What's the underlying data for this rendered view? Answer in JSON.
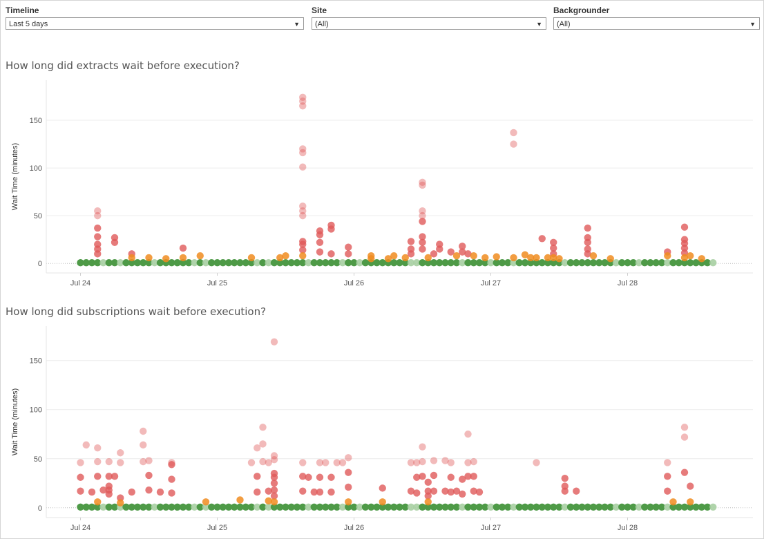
{
  "filters": [
    {
      "label": "Timeline",
      "value": "Last 5 days"
    },
    {
      "label": "Site",
      "value": "(All)"
    },
    {
      "label": "Backgrounder",
      "value": "(All)"
    }
  ],
  "colors": {
    "green": "#4e9a47",
    "orange": "#f08c20",
    "red": "#e05a5a",
    "light_red": "#f0a8a8",
    "light_orange": "#f7c894",
    "light_green": "#a7cfa2"
  },
  "chart_data": [
    {
      "type": "scatter",
      "title": "How long did extracts wait before execution?",
      "ylabel": "Wait Time (minutes)",
      "xlabel": "",
      "ylim": [
        -10,
        192
      ],
      "yticks": [
        0,
        50,
        100,
        150
      ],
      "xlim": [
        "Jul 23 18:00",
        "Jul 28 22:00"
      ],
      "xticks": [
        "Jul 24",
        "Jul 25",
        "Jul 26",
        "Jul 27",
        "Jul 28"
      ],
      "grid": true,
      "baseline_range": [
        "Jul 24 00:00",
        "Jul 28 15:00"
      ],
      "baseline_step_hours": 1,
      "baseline_value": 0,
      "points": [
        {
          "x": "Jul 24 03:00",
          "y": 55
        },
        {
          "x": "Jul 24 03:00",
          "y": 50
        },
        {
          "x": "Jul 24 03:00",
          "y": 37
        },
        {
          "x": "Jul 24 03:00",
          "y": 28
        },
        {
          "x": "Jul 24 03:00",
          "y": 20
        },
        {
          "x": "Jul 24 03:00",
          "y": 15
        },
        {
          "x": "Jul 24 03:00",
          "y": 10
        },
        {
          "x": "Jul 24 06:00",
          "y": 27
        },
        {
          "x": "Jul 24 06:00",
          "y": 22
        },
        {
          "x": "Jul 24 09:00",
          "y": 10
        },
        {
          "x": "Jul 24 09:00",
          "y": 6
        },
        {
          "x": "Jul 24 12:00",
          "y": 6
        },
        {
          "x": "Jul 24 15:00",
          "y": 5
        },
        {
          "x": "Jul 24 18:00",
          "y": 6
        },
        {
          "x": "Jul 24 18:00",
          "y": 16
        },
        {
          "x": "Jul 24 21:00",
          "y": 8
        },
        {
          "x": "Jul 25 06:00",
          "y": 6
        },
        {
          "x": "Jul 25 11:00",
          "y": 6
        },
        {
          "x": "Jul 25 12:00",
          "y": 8
        },
        {
          "x": "Jul 25 15:00",
          "y": 174
        },
        {
          "x": "Jul 25 15:00",
          "y": 170
        },
        {
          "x": "Jul 25 15:00",
          "y": 165
        },
        {
          "x": "Jul 25 15:00",
          "y": 120
        },
        {
          "x": "Jul 25 15:00",
          "y": 116
        },
        {
          "x": "Jul 25 15:00",
          "y": 101
        },
        {
          "x": "Jul 25 15:00",
          "y": 60
        },
        {
          "x": "Jul 25 15:00",
          "y": 55
        },
        {
          "x": "Jul 25 15:00",
          "y": 50
        },
        {
          "x": "Jul 25 15:00",
          "y": 23
        },
        {
          "x": "Jul 25 15:00",
          "y": 20
        },
        {
          "x": "Jul 25 15:00",
          "y": 14
        },
        {
          "x": "Jul 25 15:00",
          "y": 8
        },
        {
          "x": "Jul 25 18:00",
          "y": 34
        },
        {
          "x": "Jul 25 18:00",
          "y": 30
        },
        {
          "x": "Jul 25 18:00",
          "y": 22
        },
        {
          "x": "Jul 25 18:00",
          "y": 12
        },
        {
          "x": "Jul 25 20:00",
          "y": 40
        },
        {
          "x": "Jul 25 20:00",
          "y": 36
        },
        {
          "x": "Jul 25 20:00",
          "y": 10
        },
        {
          "x": "Jul 25 23:00",
          "y": 17
        },
        {
          "x": "Jul 25 23:00",
          "y": 10
        },
        {
          "x": "Jul 26 03:00",
          "y": 5
        },
        {
          "x": "Jul 26 06:00",
          "y": 5
        },
        {
          "x": "Jul 26 09:00",
          "y": 6
        },
        {
          "x": "Jul 26 10:00",
          "y": 23
        },
        {
          "x": "Jul 26 10:00",
          "y": 15
        },
        {
          "x": "Jul 26 10:00",
          "y": 10
        },
        {
          "x": "Jul 26 13:00",
          "y": 6
        },
        {
          "x": "Jul 27 01:00",
          "y": 7
        },
        {
          "x": "Jul 27 04:00",
          "y": 6
        },
        {
          "x": "Jul 27 08:00",
          "y": 6
        },
        {
          "x": "Jul 27 10:00",
          "y": 6
        },
        {
          "x": "Jul 26 03:00",
          "y": 8
        },
        {
          "x": "Jul 26 07:00",
          "y": 8
        },
        {
          "x": "Jul 26 12:00",
          "y": 85
        },
        {
          "x": "Jul 26 12:00",
          "y": 82
        },
        {
          "x": "Jul 26 12:00",
          "y": 55
        },
        {
          "x": "Jul 26 12:00",
          "y": 50
        },
        {
          "x": "Jul 26 12:00",
          "y": 44
        },
        {
          "x": "Jul 26 12:00",
          "y": 28
        },
        {
          "x": "Jul 26 12:00",
          "y": 22
        },
        {
          "x": "Jul 26 12:00",
          "y": 15
        },
        {
          "x": "Jul 26 14:00",
          "y": 10
        },
        {
          "x": "Jul 26 15:00",
          "y": 20
        },
        {
          "x": "Jul 26 15:00",
          "y": 15
        },
        {
          "x": "Jul 26 17:00",
          "y": 12
        },
        {
          "x": "Jul 26 18:00",
          "y": 8
        },
        {
          "x": "Jul 26 19:00",
          "y": 18
        },
        {
          "x": "Jul 26 19:00",
          "y": 12
        },
        {
          "x": "Jul 26 20:00",
          "y": 10
        },
        {
          "x": "Jul 26 21:00",
          "y": 8
        },
        {
          "x": "Jul 26 23:00",
          "y": 6
        },
        {
          "x": "Jul 27 04:00",
          "y": 137
        },
        {
          "x": "Jul 27 04:00",
          "y": 125
        },
        {
          "x": "Jul 27 06:00",
          "y": 9
        },
        {
          "x": "Jul 27 07:00",
          "y": 6
        },
        {
          "x": "Jul 27 09:00",
          "y": 26
        },
        {
          "x": "Jul 27 11:00",
          "y": 22
        },
        {
          "x": "Jul 27 11:00",
          "y": 16
        },
        {
          "x": "Jul 27 11:00",
          "y": 10
        },
        {
          "x": "Jul 27 11:00",
          "y": 6
        },
        {
          "x": "Jul 27 12:00",
          "y": 5
        },
        {
          "x": "Jul 27 17:00",
          "y": 37
        },
        {
          "x": "Jul 27 17:00",
          "y": 27
        },
        {
          "x": "Jul 27 17:00",
          "y": 22
        },
        {
          "x": "Jul 27 17:00",
          "y": 15
        },
        {
          "x": "Jul 27 17:00",
          "y": 10
        },
        {
          "x": "Jul 27 18:00",
          "y": 8
        },
        {
          "x": "Jul 27 21:00",
          "y": 5
        },
        {
          "x": "Jul 28 07:00",
          "y": 12
        },
        {
          "x": "Jul 28 07:00",
          "y": 8
        },
        {
          "x": "Jul 28 10:00",
          "y": 38
        },
        {
          "x": "Jul 28 10:00",
          "y": 25
        },
        {
          "x": "Jul 28 10:00",
          "y": 21
        },
        {
          "x": "Jul 28 10:00",
          "y": 16
        },
        {
          "x": "Jul 28 10:00",
          "y": 11
        },
        {
          "x": "Jul 28 10:00",
          "y": 6
        },
        {
          "x": "Jul 28 11:00",
          "y": 8
        },
        {
          "x": "Jul 28 13:00",
          "y": 5
        }
      ]
    },
    {
      "type": "scatter",
      "title": "How long did subscriptions wait before execution?",
      "ylabel": "Wait Time (minutes)",
      "xlabel": "",
      "ylim": [
        -10,
        185
      ],
      "yticks": [
        0,
        50,
        100,
        150
      ],
      "xlim": [
        "Jul 23 18:00",
        "Jul 28 22:00"
      ],
      "xticks": [
        "Jul 24",
        "Jul 25",
        "Jul 26",
        "Jul 27",
        "Jul 28"
      ],
      "grid": true,
      "baseline_range": [
        "Jul 24 00:00",
        "Jul 28 15:00"
      ],
      "baseline_step_hours": 1,
      "baseline_value": 0,
      "points": [
        {
          "x": "Jul 24 00:00",
          "y": 46
        },
        {
          "x": "Jul 24 00:00",
          "y": 31
        },
        {
          "x": "Jul 24 00:00",
          "y": 17
        },
        {
          "x": "Jul 24 01:00",
          "y": 64
        },
        {
          "x": "Jul 24 02:00",
          "y": 16
        },
        {
          "x": "Jul 24 03:00",
          "y": 61
        },
        {
          "x": "Jul 24 03:00",
          "y": 47
        },
        {
          "x": "Jul 24 03:00",
          "y": 32
        },
        {
          "x": "Jul 24 03:00",
          "y": 6
        },
        {
          "x": "Jul 24 04:00",
          "y": 18
        },
        {
          "x": "Jul 24 05:00",
          "y": 47
        },
        {
          "x": "Jul 24 05:00",
          "y": 32
        },
        {
          "x": "Jul 24 05:00",
          "y": 22
        },
        {
          "x": "Jul 24 05:00",
          "y": 18
        },
        {
          "x": "Jul 24 05:00",
          "y": 14
        },
        {
          "x": "Jul 24 06:00",
          "y": 32
        },
        {
          "x": "Jul 24 07:00",
          "y": 56
        },
        {
          "x": "Jul 24 07:00",
          "y": 46
        },
        {
          "x": "Jul 24 07:00",
          "y": 10
        },
        {
          "x": "Jul 24 07:00",
          "y": 5
        },
        {
          "x": "Jul 24 09:00",
          "y": 16
        },
        {
          "x": "Jul 24 11:00",
          "y": 78
        },
        {
          "x": "Jul 24 11:00",
          "y": 64
        },
        {
          "x": "Jul 24 11:00",
          "y": 47
        },
        {
          "x": "Jul 24 12:00",
          "y": 48
        },
        {
          "x": "Jul 24 12:00",
          "y": 33
        },
        {
          "x": "Jul 24 12:00",
          "y": 18
        },
        {
          "x": "Jul 24 14:00",
          "y": 16
        },
        {
          "x": "Jul 24 16:00",
          "y": 46
        },
        {
          "x": "Jul 24 16:00",
          "y": 44
        },
        {
          "x": "Jul 24 16:00",
          "y": 29
        },
        {
          "x": "Jul 24 16:00",
          "y": 15
        },
        {
          "x": "Jul 24 22:00",
          "y": 6
        },
        {
          "x": "Jul 25 04:00",
          "y": 8
        },
        {
          "x": "Jul 25 06:00",
          "y": 46
        },
        {
          "x": "Jul 25 07:00",
          "y": 61
        },
        {
          "x": "Jul 25 07:00",
          "y": 32
        },
        {
          "x": "Jul 25 07:00",
          "y": 16
        },
        {
          "x": "Jul 25 08:00",
          "y": 82
        },
        {
          "x": "Jul 25 08:00",
          "y": 65
        },
        {
          "x": "Jul 25 08:00",
          "y": 47
        },
        {
          "x": "Jul 25 09:00",
          "y": 46
        },
        {
          "x": "Jul 25 09:00",
          "y": 17
        },
        {
          "x": "Jul 25 09:00",
          "y": 7
        },
        {
          "x": "Jul 25 10:00",
          "y": 169
        },
        {
          "x": "Jul 25 10:00",
          "y": 53
        },
        {
          "x": "Jul 25 10:00",
          "y": 49
        },
        {
          "x": "Jul 25 10:00",
          "y": 35
        },
        {
          "x": "Jul 25 10:00",
          "y": 31
        },
        {
          "x": "Jul 25 10:00",
          "y": 25
        },
        {
          "x": "Jul 25 10:00",
          "y": 18
        },
        {
          "x": "Jul 25 10:00",
          "y": 12
        },
        {
          "x": "Jul 25 10:00",
          "y": 6
        },
        {
          "x": "Jul 25 15:00",
          "y": 46
        },
        {
          "x": "Jul 25 15:00",
          "y": 32
        },
        {
          "x": "Jul 25 15:00",
          "y": 17
        },
        {
          "x": "Jul 25 16:00",
          "y": 31
        },
        {
          "x": "Jul 25 17:00",
          "y": 16
        },
        {
          "x": "Jul 25 18:00",
          "y": 46
        },
        {
          "x": "Jul 25 18:00",
          "y": 31
        },
        {
          "x": "Jul 25 18:00",
          "y": 16
        },
        {
          "x": "Jul 25 19:00",
          "y": 46
        },
        {
          "x": "Jul 25 20:00",
          "y": 31
        },
        {
          "x": "Jul 25 20:00",
          "y": 16
        },
        {
          "x": "Jul 25 21:00",
          "y": 46
        },
        {
          "x": "Jul 25 22:00",
          "y": 46
        },
        {
          "x": "Jul 25 23:00",
          "y": 51
        },
        {
          "x": "Jul 25 23:00",
          "y": 36
        },
        {
          "x": "Jul 25 23:00",
          "y": 21
        },
        {
          "x": "Jul 25 23:00",
          "y": 6
        },
        {
          "x": "Jul 26 05:00",
          "y": 20
        },
        {
          "x": "Jul 26 05:00",
          "y": 6
        },
        {
          "x": "Jul 26 10:00",
          "y": 46
        },
        {
          "x": "Jul 26 10:00",
          "y": 17
        },
        {
          "x": "Jul 26 11:00",
          "y": 46
        },
        {
          "x": "Jul 26 11:00",
          "y": 31
        },
        {
          "x": "Jul 26 11:00",
          "y": 15
        },
        {
          "x": "Jul 26 12:00",
          "y": 62
        },
        {
          "x": "Jul 26 12:00",
          "y": 47
        },
        {
          "x": "Jul 26 12:00",
          "y": 32
        },
        {
          "x": "Jul 26 13:00",
          "y": 26
        },
        {
          "x": "Jul 26 13:00",
          "y": 17
        },
        {
          "x": "Jul 26 13:00",
          "y": 12
        },
        {
          "x": "Jul 26 13:00",
          "y": 6
        },
        {
          "x": "Jul 26 14:00",
          "y": 48
        },
        {
          "x": "Jul 26 14:00",
          "y": 33
        },
        {
          "x": "Jul 26 14:00",
          "y": 17
        },
        {
          "x": "Jul 26 16:00",
          "y": 48
        },
        {
          "x": "Jul 26 16:00",
          "y": 17
        },
        {
          "x": "Jul 26 17:00",
          "y": 46
        },
        {
          "x": "Jul 26 17:00",
          "y": 31
        },
        {
          "x": "Jul 26 17:00",
          "y": 16
        },
        {
          "x": "Jul 26 18:00",
          "y": 17
        },
        {
          "x": "Jul 26 19:00",
          "y": 29
        },
        {
          "x": "Jul 26 19:00",
          "y": 14
        },
        {
          "x": "Jul 26 20:00",
          "y": 75
        },
        {
          "x": "Jul 26 20:00",
          "y": 46
        },
        {
          "x": "Jul 26 20:00",
          "y": 32
        },
        {
          "x": "Jul 26 21:00",
          "y": 47
        },
        {
          "x": "Jul 26 21:00",
          "y": 32
        },
        {
          "x": "Jul 26 21:00",
          "y": 17
        },
        {
          "x": "Jul 26 22:00",
          "y": 16
        },
        {
          "x": "Jul 27 08:00",
          "y": 46
        },
        {
          "x": "Jul 27 13:00",
          "y": 30
        },
        {
          "x": "Jul 27 13:00",
          "y": 22
        },
        {
          "x": "Jul 27 13:00",
          "y": 17
        },
        {
          "x": "Jul 27 15:00",
          "y": 17
        },
        {
          "x": "Jul 28 07:00",
          "y": 46
        },
        {
          "x": "Jul 28 07:00",
          "y": 32
        },
        {
          "x": "Jul 28 07:00",
          "y": 17
        },
        {
          "x": "Jul 28 08:00",
          "y": 6
        },
        {
          "x": "Jul 28 10:00",
          "y": 82
        },
        {
          "x": "Jul 28 10:00",
          "y": 72
        },
        {
          "x": "Jul 28 10:00",
          "y": 36
        },
        {
          "x": "Jul 28 11:00",
          "y": 22
        },
        {
          "x": "Jul 28 11:00",
          "y": 6
        }
      ]
    }
  ]
}
